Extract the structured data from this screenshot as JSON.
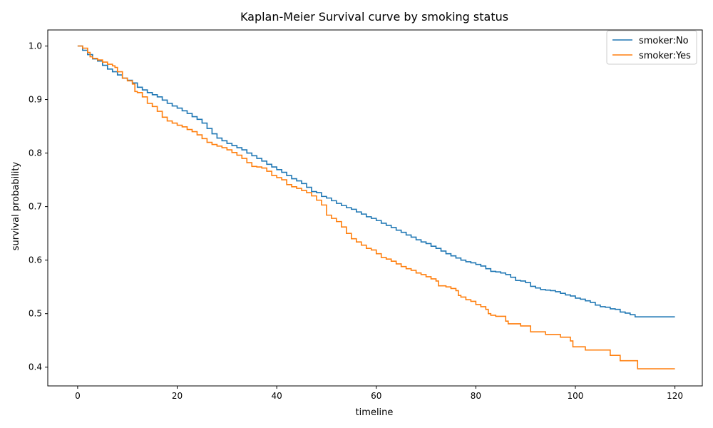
{
  "chart_data": {
    "type": "line",
    "title": "Kaplan-Meier Survival curve by smoking status",
    "xlabel": "timeline",
    "ylabel": "survival probability",
    "xlim": [
      -6,
      125.5
    ],
    "ylim": [
      0.365,
      1.03
    ],
    "xticks": [
      0,
      20,
      40,
      60,
      80,
      100,
      120
    ],
    "yticks": [
      0.4,
      0.5,
      0.6,
      0.7,
      0.8,
      0.9,
      1.0
    ],
    "grid": false,
    "legend": "top-right",
    "series": [
      {
        "name": "smoker:No",
        "color": "#1f77b4",
        "points": [
          [
            0,
            1.0
          ],
          [
            1,
            0.992
          ],
          [
            2,
            0.984
          ],
          [
            3,
            0.976
          ],
          [
            4,
            0.972
          ],
          [
            5,
            0.964
          ],
          [
            6,
            0.957
          ],
          [
            7,
            0.952
          ],
          [
            8,
            0.946
          ],
          [
            9,
            0.94
          ],
          [
            10,
            0.936
          ],
          [
            11,
            0.931
          ],
          [
            12,
            0.923
          ],
          [
            13,
            0.918
          ],
          [
            14,
            0.913
          ],
          [
            15,
            0.909
          ],
          [
            16,
            0.905
          ],
          [
            17,
            0.899
          ],
          [
            18,
            0.893
          ],
          [
            19,
            0.888
          ],
          [
            20,
            0.884
          ],
          [
            21,
            0.879
          ],
          [
            22,
            0.874
          ],
          [
            23,
            0.868
          ],
          [
            24,
            0.863
          ],
          [
            25,
            0.856
          ],
          [
            26,
            0.846
          ],
          [
            27,
            0.836
          ],
          [
            28,
            0.828
          ],
          [
            29,
            0.823
          ],
          [
            30,
            0.818
          ],
          [
            31,
            0.814
          ],
          [
            32,
            0.81
          ],
          [
            33,
            0.806
          ],
          [
            34,
            0.8
          ],
          [
            35,
            0.795
          ],
          [
            36,
            0.79
          ],
          [
            37,
            0.785
          ],
          [
            38,
            0.779
          ],
          [
            39,
            0.774
          ],
          [
            40,
            0.769
          ],
          [
            41,
            0.764
          ],
          [
            42,
            0.758
          ],
          [
            43,
            0.752
          ],
          [
            44,
            0.748
          ],
          [
            45,
            0.743
          ],
          [
            46,
            0.736
          ],
          [
            47,
            0.728
          ],
          [
            48,
            0.726
          ],
          [
            49,
            0.719
          ],
          [
            50,
            0.716
          ],
          [
            51,
            0.711
          ],
          [
            52,
            0.706
          ],
          [
            53,
            0.702
          ],
          [
            54,
            0.698
          ],
          [
            55,
            0.695
          ],
          [
            56,
            0.69
          ],
          [
            57,
            0.686
          ],
          [
            58,
            0.681
          ],
          [
            59,
            0.678
          ],
          [
            60,
            0.674
          ],
          [
            61,
            0.669
          ],
          [
            62,
            0.665
          ],
          [
            63,
            0.661
          ],
          [
            64,
            0.656
          ],
          [
            65,
            0.652
          ],
          [
            66,
            0.647
          ],
          [
            67,
            0.643
          ],
          [
            68,
            0.638
          ],
          [
            69,
            0.634
          ],
          [
            70,
            0.631
          ],
          [
            71,
            0.626
          ],
          [
            72,
            0.622
          ],
          [
            73,
            0.617
          ],
          [
            74,
            0.612
          ],
          [
            75,
            0.608
          ],
          [
            76,
            0.604
          ],
          [
            77,
            0.6
          ],
          [
            78,
            0.597
          ],
          [
            79,
            0.595
          ],
          [
            80,
            0.592
          ],
          [
            81,
            0.589
          ],
          [
            82,
            0.584
          ],
          [
            83,
            0.579
          ],
          [
            84,
            0.578
          ],
          [
            85,
            0.576
          ],
          [
            86,
            0.573
          ],
          [
            87,
            0.568
          ],
          [
            88,
            0.562
          ],
          [
            89,
            0.561
          ],
          [
            90,
            0.558
          ],
          [
            91,
            0.551
          ],
          [
            92,
            0.548
          ],
          [
            93,
            0.545
          ],
          [
            94,
            0.544
          ],
          [
            95,
            0.543
          ],
          [
            96,
            0.541
          ],
          [
            97,
            0.538
          ],
          [
            98,
            0.535
          ],
          [
            99,
            0.533
          ],
          [
            100,
            0.529
          ],
          [
            101,
            0.527
          ],
          [
            102,
            0.524
          ],
          [
            103,
            0.521
          ],
          [
            104,
            0.516
          ],
          [
            105,
            0.513
          ],
          [
            106,
            0.512
          ],
          [
            107,
            0.509
          ],
          [
            108,
            0.508
          ],
          [
            109,
            0.503
          ],
          [
            110,
            0.501
          ],
          [
            111,
            0.498
          ],
          [
            112,
            0.494
          ],
          [
            113,
            0.494
          ],
          [
            120,
            0.494
          ]
        ]
      },
      {
        "name": "smoker:Yes",
        "color": "#ff7f0e",
        "points": [
          [
            0,
            1.0
          ],
          [
            1,
            0.996
          ],
          [
            2,
            0.988
          ],
          [
            2.5,
            0.98
          ],
          [
            3,
            0.977
          ],
          [
            4,
            0.974
          ],
          [
            5,
            0.97
          ],
          [
            6,
            0.966
          ],
          [
            7,
            0.963
          ],
          [
            7.5,
            0.96
          ],
          [
            8,
            0.952
          ],
          [
            9,
            0.94
          ],
          [
            10,
            0.935
          ],
          [
            11,
            0.929
          ],
          [
            11.5,
            0.915
          ],
          [
            12,
            0.913
          ],
          [
            13,
            0.905
          ],
          [
            14,
            0.893
          ],
          [
            15,
            0.887
          ],
          [
            16,
            0.878
          ],
          [
            17,
            0.867
          ],
          [
            18,
            0.86
          ],
          [
            19,
            0.856
          ],
          [
            20,
            0.852
          ],
          [
            21,
            0.849
          ],
          [
            22,
            0.844
          ],
          [
            23,
            0.84
          ],
          [
            24,
            0.834
          ],
          [
            25,
            0.827
          ],
          [
            26,
            0.82
          ],
          [
            27,
            0.816
          ],
          [
            28,
            0.813
          ],
          [
            29,
            0.81
          ],
          [
            30,
            0.806
          ],
          [
            31,
            0.801
          ],
          [
            32,
            0.796
          ],
          [
            33,
            0.79
          ],
          [
            34,
            0.782
          ],
          [
            35,
            0.775
          ],
          [
            36,
            0.774
          ],
          [
            37,
            0.772
          ],
          [
            38,
            0.766
          ],
          [
            39,
            0.758
          ],
          [
            40,
            0.754
          ],
          [
            41,
            0.75
          ],
          [
            42,
            0.741
          ],
          [
            43,
            0.737
          ],
          [
            44,
            0.734
          ],
          [
            45,
            0.73
          ],
          [
            46,
            0.726
          ],
          [
            47,
            0.72
          ],
          [
            48,
            0.712
          ],
          [
            49,
            0.703
          ],
          [
            50,
            0.684
          ],
          [
            51,
            0.678
          ],
          [
            52,
            0.672
          ],
          [
            53,
            0.662
          ],
          [
            54,
            0.65
          ],
          [
            55,
            0.64
          ],
          [
            56,
            0.634
          ],
          [
            57,
            0.628
          ],
          [
            58,
            0.622
          ],
          [
            59,
            0.619
          ],
          [
            60,
            0.612
          ],
          [
            61,
            0.605
          ],
          [
            62,
            0.602
          ],
          [
            63,
            0.598
          ],
          [
            64,
            0.593
          ],
          [
            65,
            0.588
          ],
          [
            66,
            0.584
          ],
          [
            67,
            0.581
          ],
          [
            68,
            0.576
          ],
          [
            69,
            0.573
          ],
          [
            70,
            0.569
          ],
          [
            71,
            0.565
          ],
          [
            72,
            0.561
          ],
          [
            72.5,
            0.552
          ],
          [
            74,
            0.55
          ],
          [
            75,
            0.547
          ],
          [
            76,
            0.543
          ],
          [
            76.5,
            0.534
          ],
          [
            77,
            0.531
          ],
          [
            78,
            0.526
          ],
          [
            79,
            0.523
          ],
          [
            80,
            0.517
          ],
          [
            81,
            0.513
          ],
          [
            82,
            0.508
          ],
          [
            82.5,
            0.5
          ],
          [
            83,
            0.497
          ],
          [
            84,
            0.495
          ],
          [
            86,
            0.486
          ],
          [
            86.5,
            0.481
          ],
          [
            89,
            0.477
          ],
          [
            91,
            0.466
          ],
          [
            94,
            0.461
          ],
          [
            97,
            0.456
          ],
          [
            99,
            0.449
          ],
          [
            99.5,
            0.438
          ],
          [
            102,
            0.432
          ],
          [
            107,
            0.422
          ],
          [
            109,
            0.412
          ],
          [
            112.5,
            0.397
          ],
          [
            120,
            0.397
          ]
        ]
      }
    ]
  }
}
